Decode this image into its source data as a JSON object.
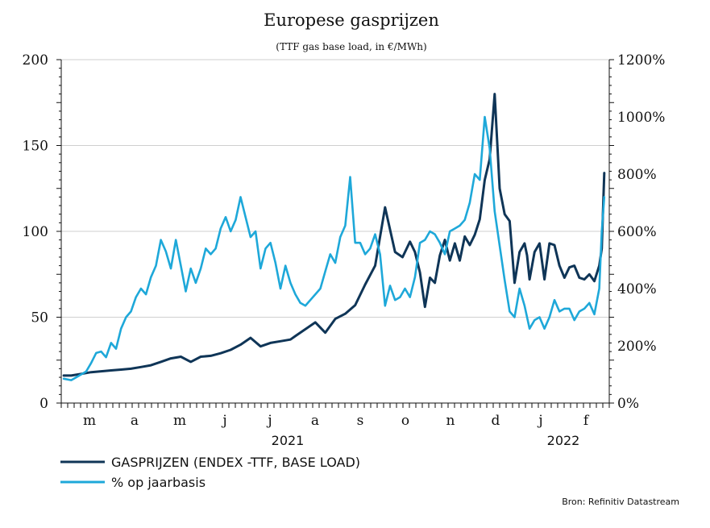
{
  "chart_data": {
    "type": "line",
    "title": "Europese gasprijzen",
    "subtitle": "(TTF gas base load, in €/MWh)",
    "source": "Bron: Refinitiv Datastream",
    "x_axis": {
      "month_labels": [
        "m",
        "a",
        "m",
        "j",
        "j",
        "a",
        "s",
        "o",
        "n",
        "d",
        "j",
        "f"
      ],
      "year_labels": [
        "2021",
        "2022"
      ],
      "range": [
        2021.06,
        2022.16
      ]
    },
    "y_left": {
      "range": [
        0,
        200
      ],
      "ticks": [
        0,
        50,
        100,
        150,
        200
      ],
      "tick_labels": [
        "0",
        "50",
        "100",
        "150",
        "200"
      ]
    },
    "y_right": {
      "range": [
        0,
        1200
      ],
      "ticks": [
        0,
        200,
        400,
        600,
        800,
        1000,
        1200
      ],
      "tick_labels": [
        "0%",
        "200%",
        "400%",
        "600%",
        "800%",
        "1000%",
        "1200%"
      ]
    },
    "grid": true,
    "legend": {
      "position": "bottom-left",
      "items": [
        {
          "label": "GASPRIJZEN (ENDEX -TTF, BASE LOAD)",
          "color": "#0f3557"
        },
        {
          "label": "% op jaarbasis",
          "color": "#1ea8d9"
        }
      ]
    },
    "series": [
      {
        "name": "GASPRIJZEN (ENDEX -TTF, BASE LOAD)",
        "axis": "left",
        "color": "#0f3557",
        "x": [
          2021.065,
          2021.08,
          2021.1,
          2021.12,
          2021.14,
          2021.16,
          2021.18,
          2021.2,
          2021.22,
          2021.24,
          2021.26,
          2021.28,
          2021.3,
          2021.32,
          2021.34,
          2021.36,
          2021.38,
          2021.4,
          2021.42,
          2021.44,
          2021.46,
          2021.48,
          2021.5,
          2021.52,
          2021.53,
          2021.55,
          2021.57,
          2021.59,
          2021.61,
          2021.63,
          2021.65,
          2021.67,
          2021.69,
          2021.71,
          2021.73,
          2021.745,
          2021.76,
          2021.77,
          2021.78,
          2021.79,
          2021.8,
          2021.81,
          2021.82,
          2021.83,
          2021.84,
          2021.85,
          2021.86,
          2021.87,
          2021.88,
          2021.89,
          2021.9,
          2021.91,
          2021.92,
          2021.93,
          2021.94,
          2021.95,
          2021.96,
          2021.97,
          2021.98,
          2021.99,
          2021.995,
          2022.0,
          2022.01,
          2022.02,
          2022.03,
          2022.04,
          2022.05,
          2022.06,
          2022.07,
          2022.08,
          2022.09,
          2022.1,
          2022.11,
          2022.12,
          2022.13,
          2022.14,
          2022.145,
          2022.15
        ],
        "values": [
          16,
          16,
          17,
          18,
          18.5,
          19,
          19.5,
          20,
          21,
          22,
          24,
          26,
          27,
          24,
          27,
          27.5,
          29,
          31,
          34,
          38,
          33,
          35,
          36,
          37,
          39,
          43,
          47,
          41,
          49,
          52,
          57,
          69,
          80,
          114,
          88,
          85,
          94,
          88,
          76,
          56,
          73,
          70,
          86,
          95,
          83,
          93,
          83,
          97,
          92,
          98,
          107,
          130,
          142,
          180,
          125,
          110,
          106,
          70,
          88,
          93,
          86,
          72,
          88,
          93,
          72,
          93,
          92,
          80,
          73,
          79,
          80,
          73,
          72,
          75,
          71,
          80,
          90,
          134
        ]
      },
      {
        "name": "% op jaarbasis",
        "axis": "right",
        "color": "#1ea8d9",
        "x": [
          2021.065,
          2021.08,
          2021.09,
          2021.1,
          2021.11,
          2021.12,
          2021.13,
          2021.14,
          2021.15,
          2021.16,
          2021.17,
          2021.18,
          2021.19,
          2021.2,
          2021.21,
          2021.22,
          2021.23,
          2021.24,
          2021.25,
          2021.26,
          2021.27,
          2021.28,
          2021.29,
          2021.3,
          2021.31,
          2021.32,
          2021.33,
          2021.34,
          2021.35,
          2021.36,
          2021.37,
          2021.38,
          2021.39,
          2021.4,
          2021.41,
          2021.42,
          2021.43,
          2021.44,
          2021.45,
          2021.46,
          2021.47,
          2021.48,
          2021.49,
          2021.5,
          2021.51,
          2021.52,
          2021.53,
          2021.54,
          2021.55,
          2021.56,
          2021.57,
          2021.58,
          2021.59,
          2021.6,
          2021.61,
          2021.62,
          2021.63,
          2021.64,
          2021.65,
          2021.66,
          2021.67,
          2021.68,
          2021.69,
          2021.7,
          2021.71,
          2021.72,
          2021.73,
          2021.74,
          2021.75,
          2021.76,
          2021.77,
          2021.78,
          2021.79,
          2021.8,
          2021.81,
          2021.82,
          2021.83,
          2021.84,
          2021.85,
          2021.86,
          2021.87,
          2021.88,
          2021.89,
          2021.9,
          2021.91,
          2021.92,
          2021.93,
          2021.94,
          2021.95,
          2021.96,
          2021.97,
          2021.98,
          2021.99,
          2022.0,
          2022.01,
          2022.02,
          2022.03,
          2022.04,
          2022.05,
          2022.06,
          2022.07,
          2022.08,
          2022.09,
          2022.1,
          2022.11,
          2022.12,
          2022.13,
          2022.14,
          2022.145,
          2022.15
        ],
        "values": [
          85,
          80,
          90,
          100,
          110,
          140,
          175,
          180,
          160,
          210,
          190,
          260,
          300,
          320,
          370,
          400,
          380,
          440,
          480,
          570,
          530,
          470,
          570,
          480,
          390,
          470,
          420,
          470,
          540,
          520,
          540,
          610,
          650,
          600,
          640,
          720,
          650,
          580,
          600,
          470,
          540,
          560,
          490,
          400,
          480,
          420,
          380,
          350,
          340,
          360,
          380,
          400,
          460,
          520,
          490,
          580,
          620,
          790,
          560,
          560,
          520,
          540,
          590,
          520,
          340,
          410,
          360,
          370,
          400,
          370,
          440,
          560,
          570,
          600,
          590,
          560,
          520,
          600,
          610,
          620,
          640,
          700,
          800,
          780,
          1000,
          890,
          670,
          550,
          430,
          320,
          300,
          400,
          340,
          260,
          290,
          300,
          260,
          300,
          360,
          320,
          330,
          330,
          290,
          320,
          330,
          350,
          310,
          400,
          600,
          720
        ]
      }
    ]
  }
}
